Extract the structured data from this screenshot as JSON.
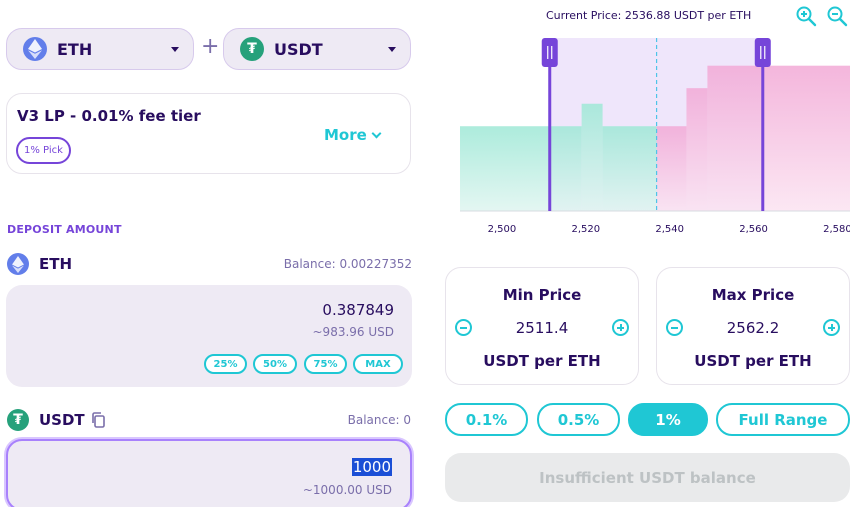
{
  "token_a": {
    "symbol": "ETH"
  },
  "token_b": {
    "symbol": "USDT"
  },
  "plus": "+",
  "fee": {
    "title": "V3 LP - 0.01% fee tier",
    "pick_badge": "1% Pick",
    "more_label": "More"
  },
  "deposit": {
    "section_label": "DEPOSIT AMOUNT",
    "eth": {
      "name": "ETH",
      "balance": "Balance: 0.00227352",
      "amount": "0.387849",
      "usd": "~983.96 USD"
    },
    "percent_buttons": [
      "25%",
      "50%",
      "75%",
      "MAX"
    ],
    "usdt": {
      "name": "USDT",
      "balance": "Balance: 0",
      "amount": "1000",
      "usd": "~1000.00 USD"
    }
  },
  "chart": {
    "current_price_label": "Current Price: 2536.88 USDT per ETH",
    "x_ticks": [
      "2,500",
      "2,520",
      "2,540",
      "2,560",
      "2,580"
    ],
    "x_min": 2490,
    "x_max": 2583,
    "current_price": 2536.88,
    "range_min": 2511.4,
    "range_max": 2562.2,
    "liquidity_bars": [
      {
        "from": 2490,
        "to": 2519,
        "level": 0.49,
        "side": "left"
      },
      {
        "from": 2519,
        "to": 2524,
        "level": 0.62,
        "side": "left"
      },
      {
        "from": 2524,
        "to": 2536.88,
        "level": 0.49,
        "side": "left"
      },
      {
        "from": 2536.88,
        "to": 2544,
        "level": 0.49,
        "side": "right"
      },
      {
        "from": 2544,
        "to": 2549,
        "level": 0.71,
        "side": "right"
      },
      {
        "from": 2549,
        "to": 2583,
        "level": 0.84,
        "side": "right"
      }
    ],
    "colors": {
      "left_fill_top": "#9ee8d6",
      "right_fill_top": "#f2a9d6",
      "range_bg": "#efe6fb",
      "handle": "#7645d9",
      "current_line": "#4ec4e8"
    }
  },
  "min_price": {
    "title": "Min Price",
    "value": "2511.4",
    "unit": "USDT per ETH"
  },
  "max_price": {
    "title": "Max Price",
    "value": "2562.2",
    "unit": "USDT per ETH"
  },
  "range_buttons": [
    {
      "label": "0.1%",
      "active": false
    },
    {
      "label": "0.5%",
      "active": false
    },
    {
      "label": "1%",
      "active": true
    },
    {
      "label": "Full Range",
      "active": false
    }
  ],
  "submit_label": "Insufficient USDT balance"
}
